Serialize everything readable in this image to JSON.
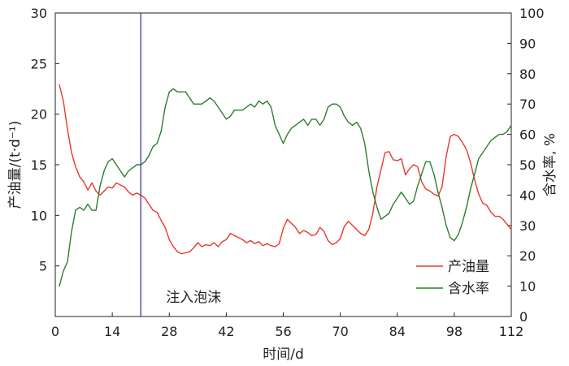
{
  "chart_data": {
    "type": "line",
    "xlabel": "时间/d",
    "ylabel_left": "产油量/(t·d⁻¹)",
    "ylabel_right": "含水率, %",
    "xlim": [
      0,
      112
    ],
    "ylim_left": [
      0,
      30
    ],
    "ylim_right": [
      0,
      100
    ],
    "x_ticks": [
      0,
      14,
      28,
      42,
      56,
      70,
      84,
      98,
      112
    ],
    "y_left_ticks": [
      5,
      10,
      15,
      20,
      25,
      30
    ],
    "y_right_ticks": [
      0,
      10,
      20,
      30,
      40,
      50,
      60,
      70,
      80,
      90,
      100
    ],
    "grid": false,
    "legend_position": "bottom-right",
    "annotation": {
      "text": "注入泡沫",
      "x": 21
    },
    "series": [
      {
        "name": "产油量",
        "axis": "left",
        "color": "#e8382c",
        "x": [
          1,
          2,
          3,
          4,
          5,
          6,
          7,
          8,
          9,
          10,
          11,
          12,
          13,
          14,
          15,
          16,
          17,
          18,
          19,
          20,
          21,
          22,
          23,
          24,
          25,
          26,
          27,
          28,
          29,
          30,
          31,
          32,
          33,
          34,
          35,
          36,
          37,
          38,
          39,
          40,
          41,
          42,
          43,
          44,
          45,
          46,
          47,
          48,
          49,
          50,
          51,
          52,
          53,
          54,
          55,
          56,
          57,
          58,
          59,
          60,
          61,
          62,
          63,
          64,
          65,
          66,
          67,
          68,
          69,
          70,
          71,
          72,
          73,
          74,
          75,
          76,
          77,
          78,
          79,
          80,
          81,
          82,
          83,
          84,
          85,
          86,
          87,
          88,
          89,
          90,
          91,
          92,
          93,
          94,
          95,
          96,
          97,
          98,
          99,
          100,
          101,
          102,
          103,
          104,
          105,
          106,
          107,
          108,
          109,
          110,
          111,
          112
        ],
        "y": [
          22.9,
          21.3,
          18.5,
          16.2,
          14.8,
          13.8,
          13.3,
          12.5,
          13.2,
          12.4,
          12.0,
          12.4,
          12.8,
          12.7,
          13.2,
          13.0,
          12.8,
          12.3,
          12.0,
          12.2,
          12.0,
          11.7,
          11.1,
          10.5,
          10.3,
          9.5,
          8.8,
          7.6,
          6.9,
          6.4,
          6.2,
          6.3,
          6.4,
          6.8,
          7.3,
          6.9,
          7.1,
          7.0,
          7.3,
          6.9,
          7.4,
          7.6,
          8.2,
          8.0,
          7.8,
          7.6,
          7.3,
          7.5,
          7.2,
          7.4,
          7.0,
          7.2,
          7.0,
          6.9,
          7.2,
          8.7,
          9.6,
          9.2,
          8.8,
          8.2,
          8.5,
          8.3,
          8.0,
          8.1,
          8.8,
          8.4,
          7.5,
          7.1,
          7.3,
          7.7,
          8.9,
          9.4,
          9.0,
          8.6,
          8.2,
          8.0,
          8.6,
          10.2,
          12.8,
          14.5,
          16.2,
          16.3,
          15.5,
          15.4,
          15.6,
          14.0,
          14.6,
          15.0,
          14.8,
          13.3,
          12.6,
          12.4,
          12.1,
          11.9,
          12.8,
          15.8,
          17.8,
          18.0,
          17.8,
          17.2,
          16.5,
          15.2,
          13.5,
          12.1,
          11.2,
          11.0,
          10.3,
          9.9,
          9.9,
          9.6,
          9.1,
          8.6
        ]
      },
      {
        "name": "含水率",
        "axis": "right",
        "color": "#2e7d2e",
        "x": [
          1,
          2,
          3,
          4,
          5,
          6,
          7,
          8,
          9,
          10,
          11,
          12,
          13,
          14,
          15,
          16,
          17,
          18,
          19,
          20,
          21,
          22,
          23,
          24,
          25,
          26,
          27,
          28,
          29,
          30,
          31,
          32,
          33,
          34,
          35,
          36,
          37,
          38,
          39,
          40,
          41,
          42,
          43,
          44,
          45,
          46,
          47,
          48,
          49,
          50,
          51,
          52,
          53,
          54,
          55,
          56,
          57,
          58,
          59,
          60,
          61,
          62,
          63,
          64,
          65,
          66,
          67,
          68,
          69,
          70,
          71,
          72,
          73,
          74,
          75,
          76,
          77,
          78,
          79,
          80,
          81,
          82,
          83,
          84,
          85,
          86,
          87,
          88,
          89,
          90,
          91,
          92,
          93,
          94,
          95,
          96,
          97,
          98,
          99,
          100,
          101,
          102,
          103,
          104,
          105,
          106,
          107,
          108,
          109,
          110,
          111,
          112
        ],
        "y": [
          10,
          15,
          18,
          28,
          35,
          36,
          35,
          37,
          35,
          35,
          43,
          48,
          51,
          52,
          50,
          48,
          46,
          48,
          49,
          50,
          50,
          51,
          53,
          56,
          57,
          61,
          69,
          74,
          75,
          74,
          74,
          74,
          72,
          70,
          70,
          70,
          71,
          72,
          71,
          69,
          67,
          65,
          66,
          68,
          68,
          68,
          69,
          70,
          69,
          71,
          70,
          71,
          69,
          63,
          60,
          57,
          60,
          62,
          63,
          64,
          65,
          63,
          65,
          65,
          63,
          65,
          69,
          70,
          70,
          69,
          66,
          64,
          63,
          64,
          62,
          57,
          48,
          41,
          36,
          32,
          33,
          34,
          37,
          39,
          41,
          39,
          37,
          38,
          43,
          47,
          51,
          51,
          47,
          41,
          36,
          30,
          26,
          25,
          27,
          31,
          36,
          42,
          47,
          52,
          54,
          56,
          58,
          59,
          60,
          60,
          61,
          63
        ]
      }
    ]
  }
}
